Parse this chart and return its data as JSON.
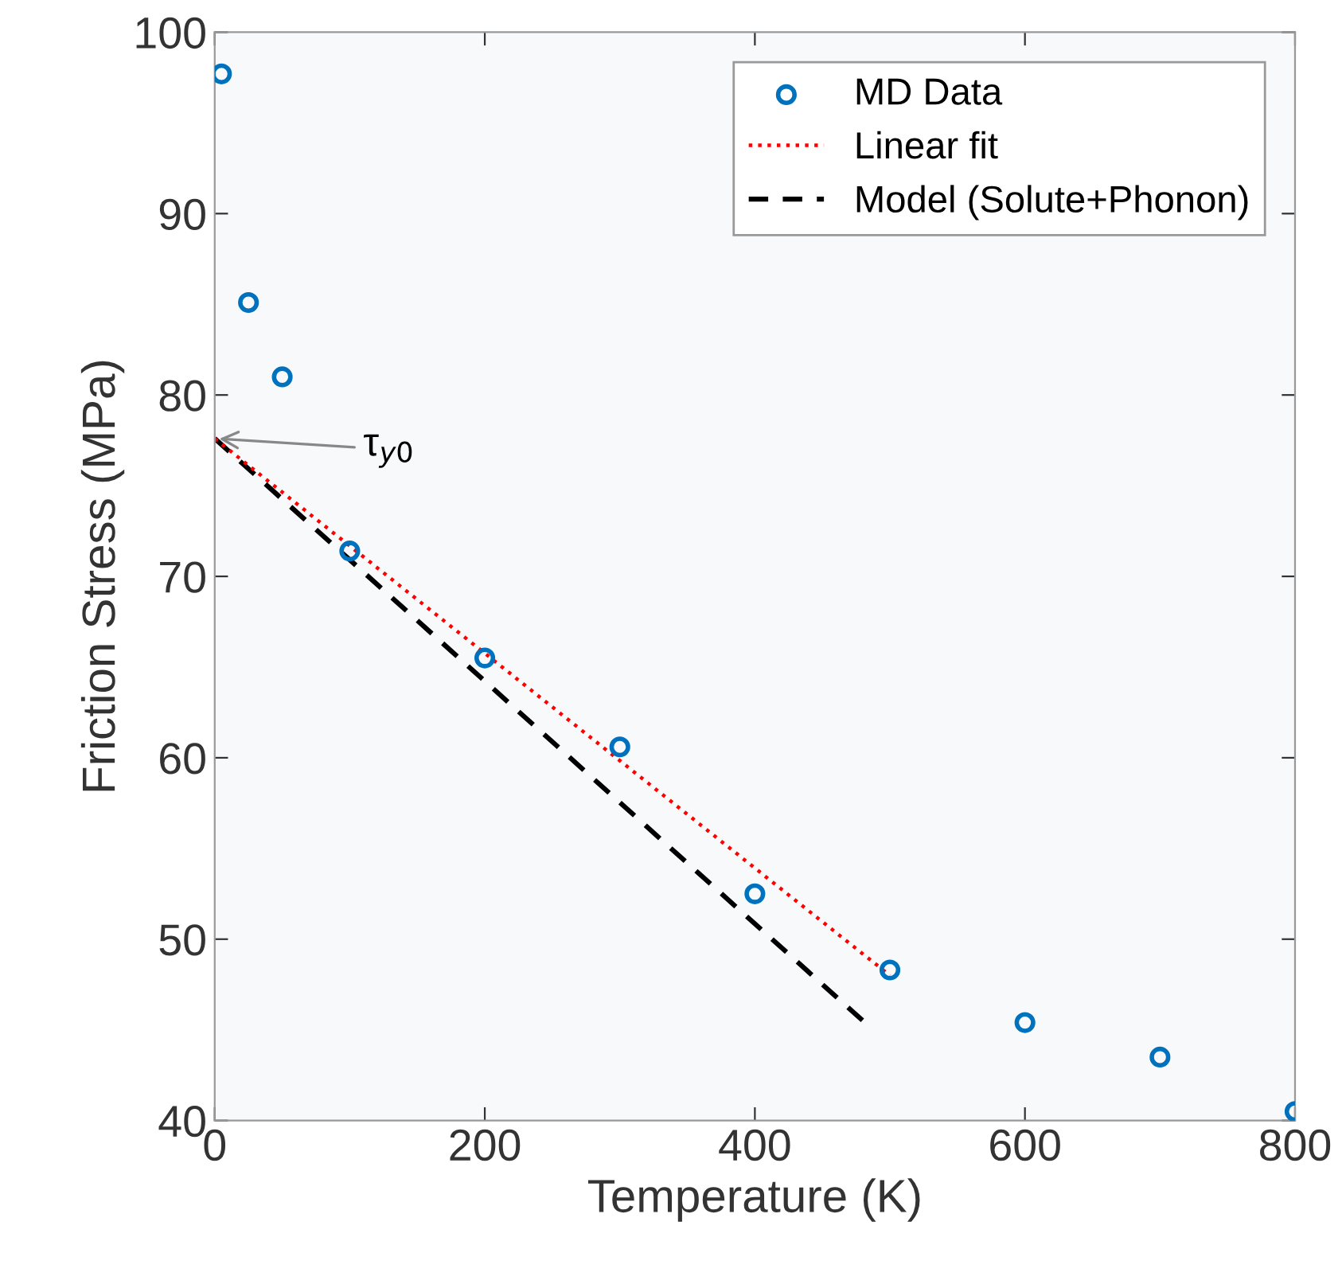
{
  "chart_data": {
    "type": "scatter",
    "xlabel": "Temperature (K)",
    "ylabel": "Friction Stress (MPa)",
    "xlim": [
      0,
      800
    ],
    "ylim": [
      40,
      100
    ],
    "xticks": [
      0,
      200,
      400,
      600,
      800
    ],
    "yticks": [
      40,
      50,
      60,
      70,
      80,
      90,
      100
    ],
    "grid": false,
    "legend": "top right",
    "series": [
      {
        "name": "MD Data",
        "marker": "circle",
        "color": "#0072bd",
        "x": [
          5,
          25,
          50,
          100,
          200,
          300,
          400,
          500,
          600,
          700,
          800
        ],
        "values": [
          97.7,
          85.1,
          81.0,
          71.4,
          65.5,
          60.6,
          52.5,
          48.3,
          45.4,
          43.5,
          40.5
        ]
      },
      {
        "name": "Linear fit",
        "type": "line",
        "line_style": "dotted",
        "color": "#ff0000",
        "x": [
          0,
          500
        ],
        "values": [
          77.6,
          48.0
        ]
      },
      {
        "name": "Model (Solute+Phonon)",
        "type": "line",
        "line_style": "dashed",
        "color": "#000000",
        "x": [
          0,
          480
        ],
        "values": [
          77.6,
          45.5
        ]
      }
    ],
    "annotations": [
      {
        "text": "τ$_{y0}$",
        "x": 0,
        "y": 77.6
      }
    ]
  }
}
